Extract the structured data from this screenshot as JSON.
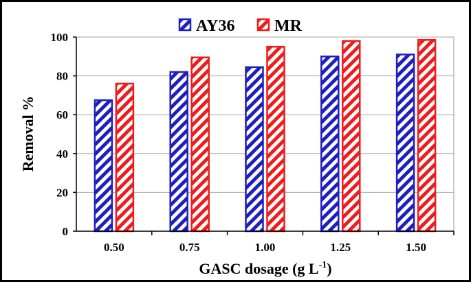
{
  "chart_data": {
    "type": "bar",
    "categories": [
      "0.50",
      "0.75",
      "1.00",
      "1.25",
      "1.50"
    ],
    "series": [
      {
        "name": "AY36",
        "values": [
          67.5,
          82,
          84.5,
          90,
          91
        ],
        "color": "#1f1fbf"
      },
      {
        "name": "MR",
        "values": [
          76,
          89.5,
          95,
          98,
          98.5
        ],
        "color": "#ee1c1c"
      }
    ],
    "title": "",
    "xlabel": "GASC dosage (g L",
    "xlabel_superscript": "-1",
    "xlabel_suffix": ")",
    "ylabel": "Removal %",
    "ylim": [
      0,
      100
    ],
    "yticks": [
      "0",
      "20",
      "40",
      "60",
      "80",
      "100"
    ],
    "ytick_values": [
      0,
      20,
      40,
      60,
      80,
      100
    ],
    "grid": true,
    "legend_position": "top-center"
  }
}
